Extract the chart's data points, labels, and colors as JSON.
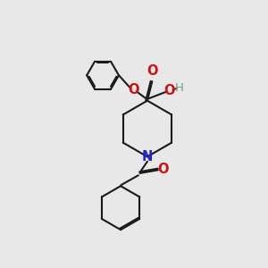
{
  "bg_color": "#e8e8e8",
  "bond_color": "#1a1a1a",
  "N_color": "#2222cc",
  "O_color": "#cc1111",
  "H_color": "#779988",
  "line_width": 1.5,
  "font_size": 10.5,
  "fig_w": 3.0,
  "fig_h": 3.0,
  "dpi": 100,
  "xlim": [
    0,
    10
  ],
  "ylim": [
    0,
    10
  ]
}
